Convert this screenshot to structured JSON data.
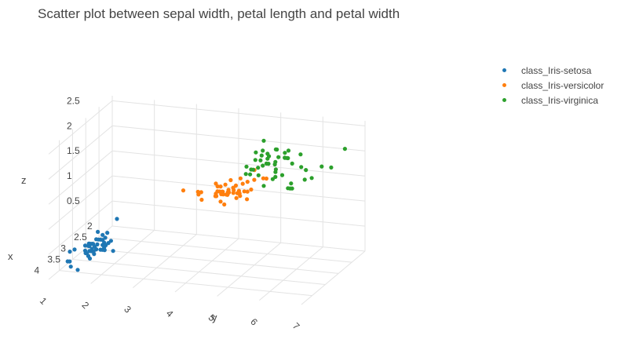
{
  "chart_data": {
    "type": "scatter",
    "title": "Scatter plot between sepal width, petal length and petal width",
    "xlabel": "x",
    "ylabel": "y",
    "zlabel": "z",
    "x_ticks": [
      "2",
      "2.5",
      "3",
      "3.5",
      "4"
    ],
    "y_ticks": [
      "1",
      "2",
      "3",
      "4",
      "5",
      "6",
      "7"
    ],
    "z_ticks": [
      "0.5",
      "1",
      "1.5",
      "2",
      "2.5"
    ],
    "xlim": [
      2,
      4.4
    ],
    "ylim": [
      1,
      7
    ],
    "zlim": [
      0,
      2.6
    ],
    "legend_position": "top-right",
    "series": [
      {
        "name": "class_Iris-setosa",
        "color": "#1f77b4",
        "points": [
          [
            3.5,
            1.4,
            0.2
          ],
          [
            3.0,
            1.4,
            0.2
          ],
          [
            3.2,
            1.3,
            0.2
          ],
          [
            3.1,
            1.5,
            0.2
          ],
          [
            3.6,
            1.4,
            0.2
          ],
          [
            3.9,
            1.7,
            0.4
          ],
          [
            3.4,
            1.4,
            0.3
          ],
          [
            3.4,
            1.5,
            0.2
          ],
          [
            2.9,
            1.4,
            0.2
          ],
          [
            3.1,
            1.5,
            0.1
          ],
          [
            3.7,
            1.5,
            0.2
          ],
          [
            3.4,
            1.6,
            0.2
          ],
          [
            3.0,
            1.4,
            0.1
          ],
          [
            3.0,
            1.1,
            0.1
          ],
          [
            4.0,
            1.2,
            0.2
          ],
          [
            4.4,
            1.5,
            0.4
          ],
          [
            3.9,
            1.3,
            0.4
          ],
          [
            3.5,
            1.4,
            0.3
          ],
          [
            3.8,
            1.7,
            0.3
          ],
          [
            3.8,
            1.5,
            0.3
          ],
          [
            3.4,
            1.7,
            0.2
          ],
          [
            3.7,
            1.5,
            0.4
          ],
          [
            3.6,
            1.0,
            0.2
          ],
          [
            3.3,
            1.7,
            0.5
          ],
          [
            3.4,
            1.9,
            0.2
          ],
          [
            3.0,
            1.6,
            0.2
          ],
          [
            3.4,
            1.6,
            0.4
          ],
          [
            3.5,
            1.5,
            0.2
          ],
          [
            3.4,
            1.4,
            0.2
          ],
          [
            3.2,
            1.6,
            0.2
          ],
          [
            3.1,
            1.6,
            0.2
          ],
          [
            3.4,
            1.5,
            0.4
          ],
          [
            4.1,
            1.5,
            0.1
          ],
          [
            4.2,
            1.4,
            0.2
          ],
          [
            3.2,
            1.2,
            0.2
          ],
          [
            3.5,
            1.3,
            0.2
          ],
          [
            3.0,
            1.3,
            0.2
          ],
          [
            3.4,
            1.5,
            0.2
          ],
          [
            3.5,
            1.3,
            0.3
          ],
          [
            2.3,
            1.3,
            0.3
          ],
          [
            3.2,
            1.3,
            0.2
          ],
          [
            3.5,
            1.6,
            0.6
          ],
          [
            3.8,
            1.9,
            0.4
          ],
          [
            3.0,
            1.4,
            0.3
          ],
          [
            3.8,
            1.6,
            0.2
          ],
          [
            3.2,
            1.4,
            0.2
          ],
          [
            3.7,
            1.5,
            0.2
          ],
          [
            3.3,
            1.4,
            0.2
          ]
        ]
      },
      {
        "name": "class_Iris-versicolor",
        "color": "#ff7f0e",
        "points": [
          [
            3.2,
            4.7,
            1.4
          ],
          [
            3.2,
            4.5,
            1.5
          ],
          [
            3.1,
            4.9,
            1.5
          ],
          [
            2.3,
            4.0,
            1.3
          ],
          [
            2.8,
            4.6,
            1.5
          ],
          [
            2.8,
            4.5,
            1.3
          ],
          [
            3.3,
            4.7,
            1.6
          ],
          [
            2.4,
            3.3,
            1.0
          ],
          [
            2.9,
            4.6,
            1.3
          ],
          [
            2.7,
            3.9,
            1.4
          ],
          [
            2.0,
            3.5,
            1.0
          ],
          [
            3.0,
            4.2,
            1.5
          ],
          [
            2.2,
            4.0,
            1.0
          ],
          [
            2.9,
            4.7,
            1.4
          ],
          [
            2.9,
            3.6,
            1.3
          ],
          [
            3.1,
            4.4,
            1.4
          ],
          [
            3.0,
            4.5,
            1.5
          ],
          [
            2.7,
            4.1,
            1.0
          ],
          [
            2.2,
            4.5,
            1.5
          ],
          [
            2.5,
            3.9,
            1.1
          ],
          [
            3.2,
            4.8,
            1.8
          ],
          [
            2.8,
            4.0,
            1.3
          ],
          [
            2.5,
            4.9,
            1.5
          ],
          [
            2.8,
            4.7,
            1.2
          ],
          [
            2.9,
            4.3,
            1.3
          ],
          [
            3.0,
            4.4,
            1.4
          ],
          [
            2.8,
            4.8,
            1.4
          ],
          [
            3.0,
            5.0,
            1.7
          ],
          [
            2.9,
            4.5,
            1.5
          ],
          [
            2.6,
            3.5,
            1.0
          ],
          [
            2.4,
            3.8,
            1.1
          ],
          [
            2.4,
            3.7,
            1.0
          ],
          [
            2.7,
            3.9,
            1.2
          ],
          [
            2.7,
            5.1,
            1.6
          ],
          [
            3.0,
            4.5,
            1.5
          ],
          [
            3.4,
            4.5,
            1.6
          ],
          [
            3.1,
            4.7,
            1.5
          ],
          [
            2.3,
            4.4,
            1.3
          ],
          [
            3.0,
            4.1,
            1.3
          ],
          [
            2.5,
            4.0,
            1.3
          ],
          [
            2.6,
            4.4,
            1.2
          ],
          [
            3.0,
            4.6,
            1.4
          ],
          [
            2.6,
            4.0,
            1.2
          ],
          [
            2.3,
            3.3,
            1.0
          ],
          [
            2.7,
            4.2,
            1.3
          ],
          [
            3.0,
            4.2,
            1.2
          ],
          [
            2.9,
            4.2,
            1.3
          ],
          [
            2.9,
            4.3,
            1.3
          ],
          [
            2.5,
            3.0,
            1.1
          ],
          [
            2.8,
            4.1,
            1.3
          ]
        ]
      },
      {
        "name": "class_Iris-virginica",
        "color": "#2ca02c",
        "points": [
          [
            3.3,
            6.0,
            2.5
          ],
          [
            2.7,
            5.1,
            1.9
          ],
          [
            3.0,
            5.9,
            2.1
          ],
          [
            2.9,
            5.6,
            1.8
          ],
          [
            3.0,
            5.8,
            2.2
          ],
          [
            3.0,
            6.6,
            2.1
          ],
          [
            2.5,
            4.5,
            1.7
          ],
          [
            2.9,
            6.3,
            1.8
          ],
          [
            2.5,
            5.8,
            1.8
          ],
          [
            3.6,
            6.1,
            2.5
          ],
          [
            3.2,
            5.1,
            2.0
          ],
          [
            2.7,
            5.3,
            1.9
          ],
          [
            3.0,
            5.5,
            2.1
          ],
          [
            2.5,
            5.0,
            2.0
          ],
          [
            2.8,
            5.1,
            2.4
          ],
          [
            3.2,
            5.3,
            2.3
          ],
          [
            3.0,
            5.5,
            1.8
          ],
          [
            3.8,
            6.7,
            2.2
          ],
          [
            2.6,
            6.9,
            2.3
          ],
          [
            2.2,
            5.0,
            1.5
          ],
          [
            3.2,
            5.7,
            2.3
          ],
          [
            2.8,
            4.9,
            2.0
          ],
          [
            2.8,
            6.7,
            2.0
          ],
          [
            2.7,
            4.9,
            1.8
          ],
          [
            3.3,
            5.7,
            2.1
          ],
          [
            3.2,
            6.0,
            1.8
          ],
          [
            2.8,
            4.8,
            1.8
          ],
          [
            3.0,
            4.9,
            1.8
          ],
          [
            2.8,
            5.6,
            2.1
          ],
          [
            3.0,
            5.8,
            1.6
          ],
          [
            2.8,
            6.1,
            1.9
          ],
          [
            3.8,
            6.4,
            2.0
          ],
          [
            2.8,
            5.6,
            2.2
          ],
          [
            2.8,
            5.1,
            1.5
          ],
          [
            2.6,
            5.6,
            1.4
          ],
          [
            3.0,
            6.1,
            2.3
          ],
          [
            3.4,
            5.6,
            2.4
          ],
          [
            3.1,
            5.5,
            1.8
          ],
          [
            3.0,
            4.8,
            1.8
          ],
          [
            3.1,
            5.4,
            2.1
          ],
          [
            3.1,
            5.6,
            2.4
          ],
          [
            3.1,
            5.1,
            2.3
          ],
          [
            3.2,
            5.9,
            2.3
          ],
          [
            3.3,
            5.7,
            2.5
          ],
          [
            3.0,
            5.2,
            2.3
          ],
          [
            2.5,
            5.0,
            1.9
          ],
          [
            3.0,
            5.2,
            2.0
          ],
          [
            3.4,
            5.4,
            2.3
          ],
          [
            3.0,
            5.1,
            1.8
          ]
        ]
      }
    ]
  }
}
